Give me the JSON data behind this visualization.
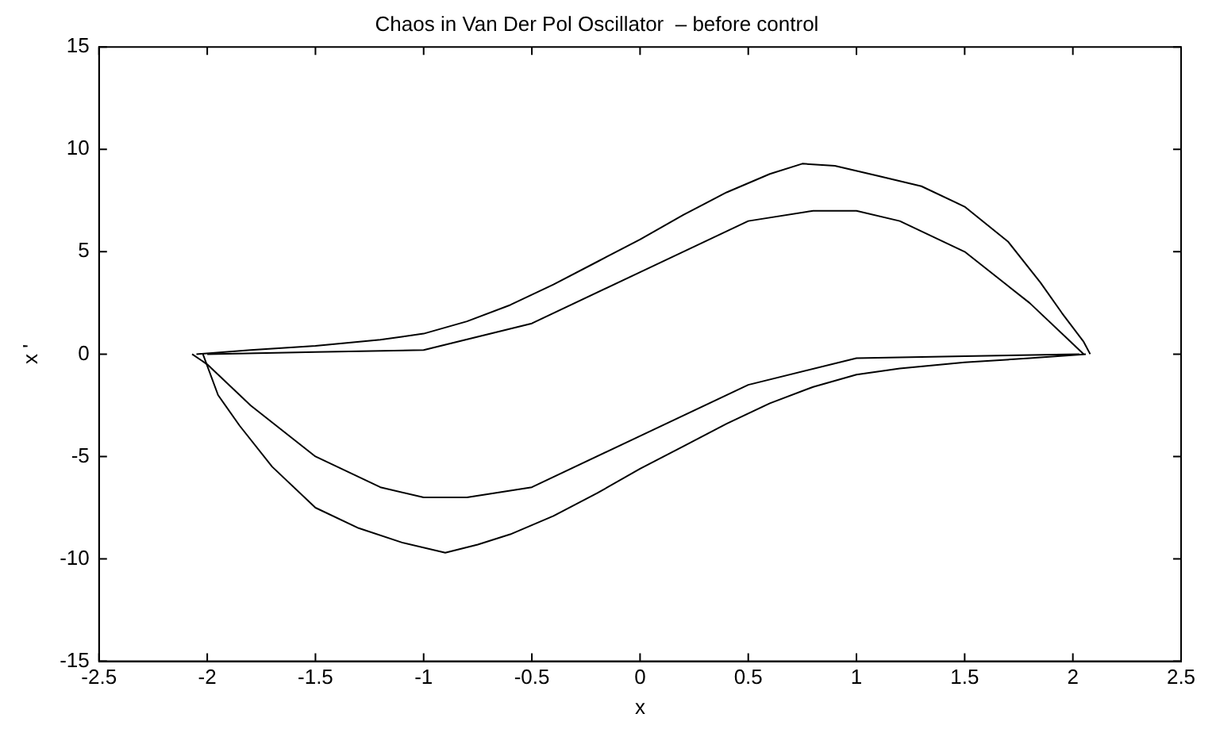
{
  "chart_data": {
    "type": "line",
    "title": "Chaos in Van Der Pol Oscillator  – before control",
    "xlabel": "x",
    "ylabel": "x '",
    "xlim": [
      -2.5,
      2.5
    ],
    "xticks": [
      -2.5,
      -2,
      -1.5,
      -1,
      -0.5,
      0,
      0.5,
      1,
      1.5,
      2,
      2.5
    ],
    "ylim": [
      -15,
      15
    ],
    "yticks": [
      -15,
      -10,
      -5,
      0,
      5,
      10,
      15
    ],
    "grid": false,
    "legend": false,
    "marker": "none",
    "line_style": "solid",
    "series": [
      {
        "color": "#000000",
        "x": [
          -2.05,
          -1.8,
          -1.5,
          -1.2,
          -1,
          -0.8,
          -0.6,
          -0.4,
          -0.2,
          0,
          0.2,
          0.4,
          0.6,
          0.75,
          0.9,
          1.1,
          1.3,
          1.5,
          1.7,
          1.85,
          1.95,
          2.05,
          2.08
        ],
        "values": [
          0,
          0.2,
          0.4,
          0.7,
          1,
          1.6,
          2.4,
          3.4,
          4.5,
          5.6,
          6.8,
          7.9,
          8.8,
          9.3,
          9.2,
          8.7,
          8.2,
          7.2,
          5.5,
          3.5,
          2,
          0.6,
          0
        ]
      },
      {
        "color": "#000000",
        "x": [
          -2.02,
          -1.95,
          -1.85,
          -1.7,
          -1.5,
          -1.3,
          -1.1,
          -0.9,
          -0.75,
          -0.6,
          -0.4,
          -0.2,
          0,
          0.2,
          0.4,
          0.6,
          0.8,
          1,
          1.2,
          1.5,
          1.8,
          2.06
        ],
        "values": [
          0,
          -2,
          -3.5,
          -5.5,
          -7.5,
          -8.5,
          -9.2,
          -9.7,
          -9.3,
          -8.8,
          -7.9,
          -6.8,
          -5.6,
          -4.5,
          -3.4,
          -2.4,
          -1.6,
          -1,
          -0.7,
          -0.4,
          -0.2,
          0
        ]
      },
      {
        "color": "#000000",
        "x": [
          -2,
          -1.5,
          -1,
          -0.5,
          0,
          0.5,
          0.8,
          1,
          1.2,
          1.5,
          1.8,
          2,
          2.05
        ],
        "values": [
          0,
          0.1,
          0.2,
          1.5,
          4,
          6.5,
          7,
          7,
          6.5,
          5,
          2.5,
          0.5,
          0
        ]
      },
      {
        "color": "#000000",
        "x": [
          -2.07,
          -2,
          -1.8,
          -1.5,
          -1.2,
          -1,
          -0.8,
          -0.5,
          0,
          0.5,
          1,
          1.5,
          2.03
        ],
        "values": [
          0,
          -0.5,
          -2.5,
          -5,
          -6.5,
          -7,
          -7,
          -6.5,
          -4,
          -1.5,
          -0.2,
          -0.1,
          0
        ]
      }
    ]
  }
}
